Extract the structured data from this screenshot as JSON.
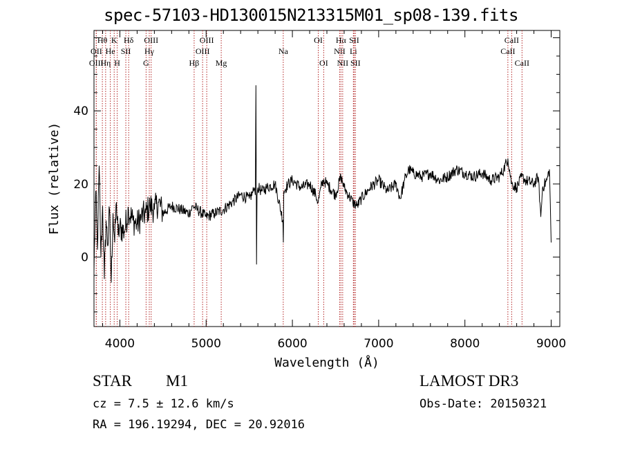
{
  "chart_data": {
    "type": "line",
    "title": "spec-57103-HD130015N213315M01_sp08-139.fits",
    "xlabel": "Wavelength (Å)",
    "ylabel": "Flux (relative)",
    "xlim": [
      3700,
      9100
    ],
    "ylim": [
      -19,
      62
    ],
    "x_ticks": [
      4000,
      5000,
      6000,
      7000,
      8000,
      9000
    ],
    "y_ticks": [
      0,
      20,
      40
    ],
    "series": [
      {
        "name": "spectrum",
        "x": [
          3700,
          3720,
          3740,
          3760,
          3780,
          3800,
          3820,
          3840,
          3860,
          3880,
          3900,
          3920,
          3940,
          3960,
          3980,
          4000,
          4050,
          4100,
          4150,
          4200,
          4250,
          4300,
          4350,
          4400,
          4450,
          4500,
          4600,
          4700,
          4800,
          4850,
          4900,
          5000,
          5100,
          5200,
          5300,
          5400,
          5500,
          5550,
          5560,
          5570,
          5577,
          5584,
          5590,
          5600,
          5650,
          5700,
          5800,
          5890,
          5895,
          5900,
          5950,
          6000,
          6100,
          6200,
          6270,
          6300,
          6330,
          6360,
          6400,
          6500,
          6563,
          6600,
          6650,
          6700,
          6750,
          6800,
          6900,
          7000,
          7100,
          7200,
          7250,
          7300,
          7350,
          7400,
          7500,
          7600,
          7700,
          7800,
          7900,
          8000,
          8100,
          8200,
          8300,
          8400,
          8450,
          8498,
          8542,
          8600,
          8662,
          8700,
          8800,
          8850,
          8880,
          8900,
          8950,
          8980,
          9000
        ],
        "y": [
          -4,
          18,
          2,
          25,
          0,
          14,
          -6,
          10,
          3,
          13,
          -7,
          12,
          4,
          15,
          6,
          8,
          7,
          13,
          10,
          9,
          11,
          12,
          14,
          13,
          15,
          12,
          14,
          13,
          12,
          14,
          13,
          11,
          12,
          13,
          15,
          17,
          16,
          18,
          19,
          17,
          47,
          -2,
          17,
          19,
          18,
          19,
          20,
          10,
          4,
          18,
          20,
          21,
          19,
          20,
          17,
          15,
          19,
          21,
          20,
          17,
          22,
          19,
          17,
          15,
          14,
          16,
          19,
          21,
          18,
          20,
          16,
          21,
          24,
          23,
          22,
          23,
          21,
          22,
          24,
          23,
          22,
          23,
          21,
          22,
          24,
          27,
          20,
          19,
          22,
          21,
          20,
          22,
          11,
          19,
          21,
          24,
          4
        ]
      }
    ],
    "line_markers": [
      {
        "label": "Hθ",
        "x": 3797,
        "row": 1
      },
      {
        "label": "OII",
        "x": 3727,
        "row": 2
      },
      {
        "label": "OIII",
        "x": 3726,
        "row": 3
      },
      {
        "label": "Hη",
        "x": 3835,
        "row": 3
      },
      {
        "label": "He",
        "x": 3889,
        "row": 2
      },
      {
        "label": "K",
        "x": 3934,
        "row": 1
      },
      {
        "label": "H",
        "x": 3969,
        "row": 3
      },
      {
        "label": "SII",
        "x": 4069,
        "row": 2
      },
      {
        "label": "Hδ",
        "x": 4102,
        "row": 1
      },
      {
        "label": "G",
        "x": 4304,
        "row": 3
      },
      {
        "label": "Hγ",
        "x": 4341,
        "row": 2
      },
      {
        "label": "OIII",
        "x": 4363,
        "row": 1
      },
      {
        "label": "Hβ",
        "x": 4861,
        "row": 3
      },
      {
        "label": "OIII",
        "x": 4959,
        "row": 2
      },
      {
        "label": "OIII",
        "x": 5007,
        "row": 1
      },
      {
        "label": "Mg",
        "x": 5175,
        "row": 3
      },
      {
        "label": "Na",
        "x": 5894,
        "row": 2
      },
      {
        "label": "OI",
        "x": 6300,
        "row": 1
      },
      {
        "label": "OI",
        "x": 6363,
        "row": 3
      },
      {
        "label": "NII",
        "x": 6548,
        "row": 2
      },
      {
        "label": "Hα",
        "x": 6563,
        "row": 1
      },
      {
        "label": "NII",
        "x": 6583,
        "row": 3
      },
      {
        "label": "Li",
        "x": 6707,
        "row": 2
      },
      {
        "label": "SII",
        "x": 6716,
        "row": 1
      },
      {
        "label": "SII",
        "x": 6731,
        "row": 3
      },
      {
        "label": "CaII",
        "x": 8498,
        "row": 2
      },
      {
        "label": "CaII",
        "x": 8542,
        "row": 1
      },
      {
        "label": "CaII",
        "x": 8662,
        "row": 3
      }
    ]
  },
  "info": {
    "class": "STAR",
    "subclass": "M1",
    "cz": "cz = 7.5 ± 12.6 km/s",
    "radec": "RA = 196.19294, DEC =  20.92016",
    "survey": "LAMOST DR3",
    "obs_date": "Obs-Date: 20150321"
  }
}
